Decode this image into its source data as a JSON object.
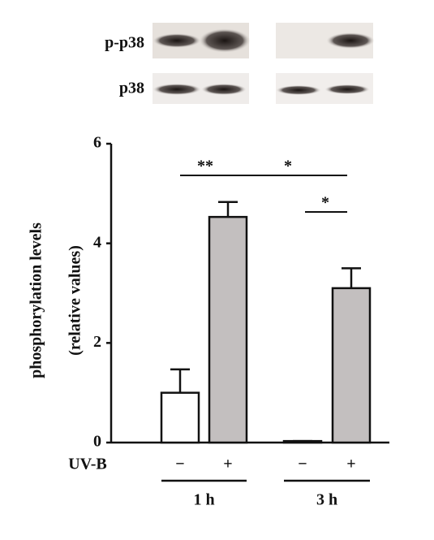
{
  "chart_data": {
    "type": "bar",
    "blot_labels": [
      "p-p38",
      "p38"
    ],
    "y_label": [
      "phosphorylation levels",
      "(relative values)"
    ],
    "x_label": "UV-B",
    "categories": [
      "−",
      "+",
      "−",
      "+"
    ],
    "groups": [
      "1 h",
      "3 h"
    ],
    "values": [
      1.0,
      4.53,
      0.03,
      3.1
    ],
    "errors": [
      0.47,
      0.3,
      0,
      0.4
    ],
    "colors": [
      "#ffffff",
      "#c3bfbf",
      "#ffffff",
      "#c3bfbf"
    ],
    "annotations": [
      "**",
      "*",
      "*"
    ],
    "ylim": [
      0,
      6
    ],
    "yticks": [
      0,
      2,
      4,
      6
    ]
  }
}
